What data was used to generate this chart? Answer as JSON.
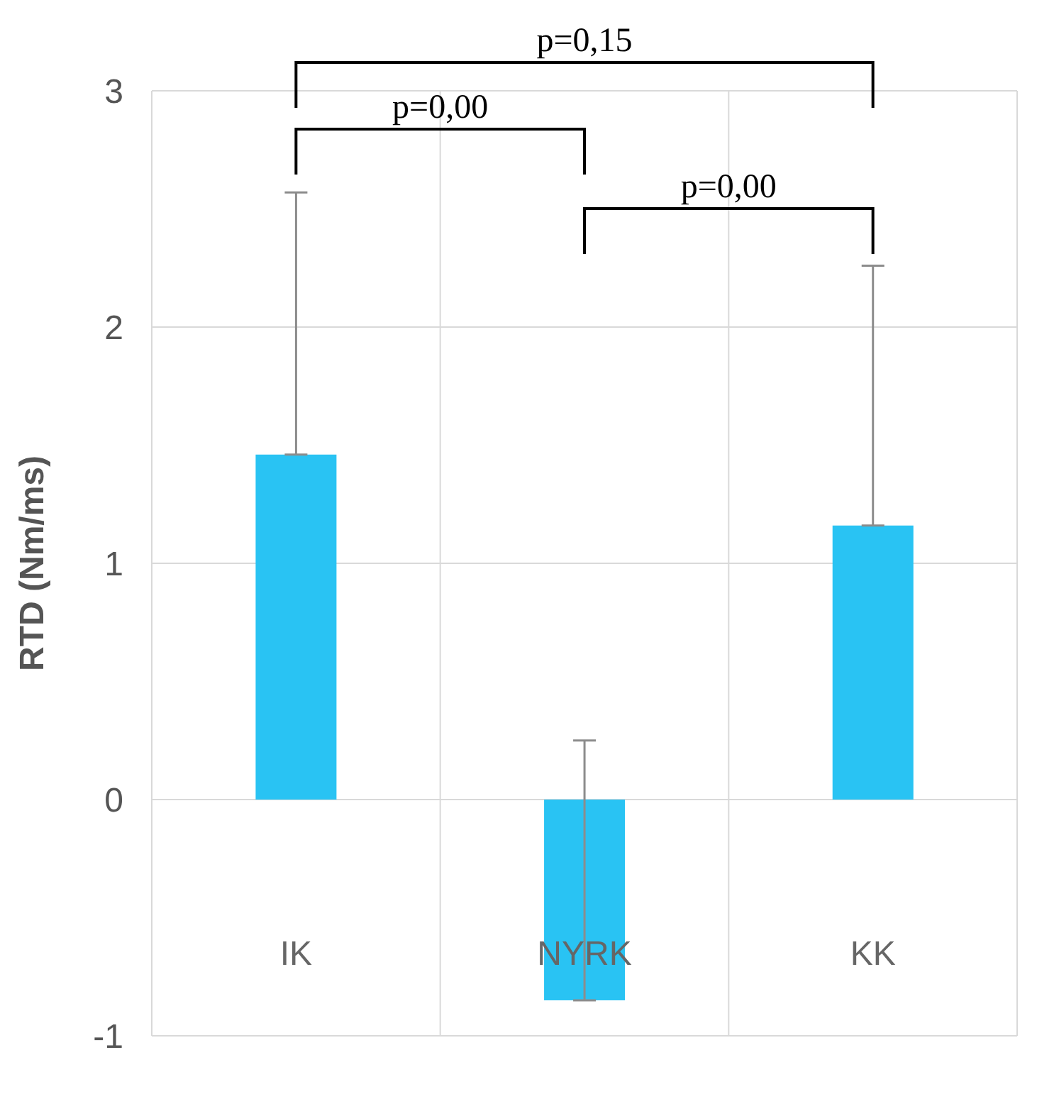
{
  "chart_data": {
    "type": "bar",
    "ylabel": "RTD (Nm/ms)",
    "categories": [
      "IK",
      "NYRK",
      "KK"
    ],
    "values": [
      1.46,
      -0.85,
      1.16
    ],
    "color": "#29c3f3",
    "errors": [
      [
        1.46,
        2.57
      ],
      [
        -0.85,
        0.25
      ],
      [
        1.16,
        2.26
      ]
    ],
    "ylim": [
      -1,
      3
    ],
    "yticks": [
      -1,
      0,
      1,
      2,
      3
    ],
    "grid": true,
    "annotations": [
      "p=0,15",
      "p=0,00",
      "p=0,00"
    ]
  }
}
